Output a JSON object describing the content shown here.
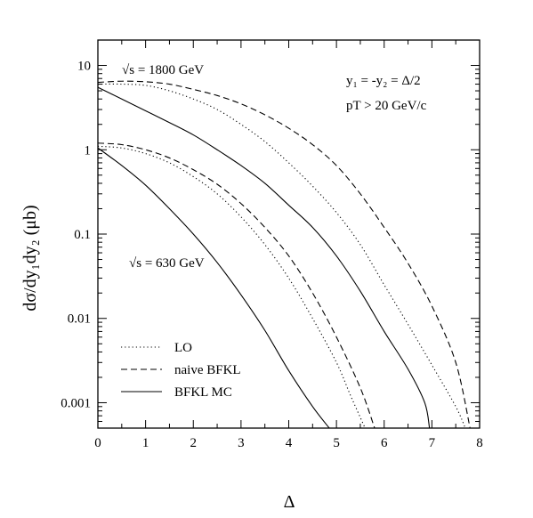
{
  "chart_data": {
    "type": "line",
    "xlabel": "Δ",
    "ylabel": "dσ/dy₁dy₂ (μb)",
    "xlim": [
      0,
      8
    ],
    "ylim": [
      0.0005,
      20
    ],
    "yscale": "log",
    "x_ticks": [
      "0",
      "1",
      "2",
      "3",
      "4",
      "5",
      "6",
      "7",
      "8"
    ],
    "y_ticks": [
      {
        "value": 10,
        "label": "10"
      },
      {
        "value": 1,
        "label": "1"
      },
      {
        "value": 0.1,
        "label": "0.1"
      },
      {
        "value": 0.01,
        "label": "0.01"
      },
      {
        "value": 0.001,
        "label": "0.001"
      }
    ],
    "annotations": {
      "energy_high": "√s = 1800 GeV",
      "energy_low": "√s = 630 GeV",
      "rapidity": "y₁ = -y₂ = Δ/2",
      "pt_cut": "pT > 20 GeV/c"
    },
    "legend": {
      "placement": "bottom-left",
      "entries": [
        {
          "label": "LO",
          "style": "dotted"
        },
        {
          "label": "naive BFKL",
          "style": "dashed"
        },
        {
          "label": "BFKL MC",
          "style": "solid"
        }
      ]
    },
    "series": [
      {
        "group": "1800",
        "style": "dotted",
        "x": [
          0,
          0.5,
          1,
          1.5,
          2,
          2.5,
          3,
          3.5,
          4,
          4.5,
          5,
          5.5,
          6,
          6.5,
          7,
          7.5,
          7.7
        ],
        "y": [
          6.0,
          6.0,
          5.8,
          5.0,
          4.0,
          3.0,
          2.0,
          1.25,
          0.7,
          0.37,
          0.18,
          0.075,
          0.025,
          0.0085,
          0.0028,
          0.0009,
          0.0005
        ]
      },
      {
        "group": "1800",
        "style": "dashed",
        "x": [
          0,
          0.5,
          1,
          1.5,
          2,
          2.5,
          3,
          3.5,
          4,
          4.5,
          5,
          5.5,
          6,
          6.5,
          7,
          7.5,
          7.8
        ],
        "y": [
          6.3,
          6.5,
          6.4,
          6.0,
          5.2,
          4.4,
          3.5,
          2.6,
          1.8,
          1.15,
          0.65,
          0.3,
          0.12,
          0.045,
          0.014,
          0.003,
          0.0005
        ]
      },
      {
        "group": "1800",
        "style": "solid",
        "x": [
          0,
          0.5,
          1,
          1.5,
          2,
          2.5,
          3,
          3.5,
          4,
          4.5,
          5,
          5.5,
          6,
          6.5,
          6.85,
          6.95
        ],
        "y": [
          5.5,
          4.0,
          2.9,
          2.1,
          1.5,
          1.0,
          0.65,
          0.4,
          0.22,
          0.12,
          0.055,
          0.021,
          0.007,
          0.0025,
          0.001,
          0.0005
        ]
      },
      {
        "group": "630",
        "style": "dotted",
        "x": [
          0,
          0.5,
          1,
          1.5,
          2,
          2.5,
          3,
          3.5,
          4,
          4.5,
          5,
          5.3,
          5.6
        ],
        "y": [
          1.1,
          1.05,
          0.9,
          0.7,
          0.48,
          0.3,
          0.16,
          0.075,
          0.03,
          0.01,
          0.003,
          0.0012,
          0.0005
        ]
      },
      {
        "group": "630",
        "style": "dashed",
        "x": [
          0,
          0.5,
          1,
          1.5,
          2,
          2.5,
          3,
          3.5,
          4,
          4.5,
          5,
          5.5,
          5.8
        ],
        "y": [
          1.2,
          1.15,
          1.0,
          0.8,
          0.58,
          0.39,
          0.23,
          0.12,
          0.055,
          0.02,
          0.006,
          0.0015,
          0.0005
        ]
      },
      {
        "group": "630",
        "style": "solid",
        "x": [
          0,
          0.5,
          1,
          1.5,
          2,
          2.5,
          3,
          3.5,
          4,
          4.5,
          4.85
        ],
        "y": [
          1.05,
          0.65,
          0.38,
          0.2,
          0.1,
          0.046,
          0.019,
          0.0072,
          0.0024,
          0.0009,
          0.0005
        ]
      }
    ]
  }
}
